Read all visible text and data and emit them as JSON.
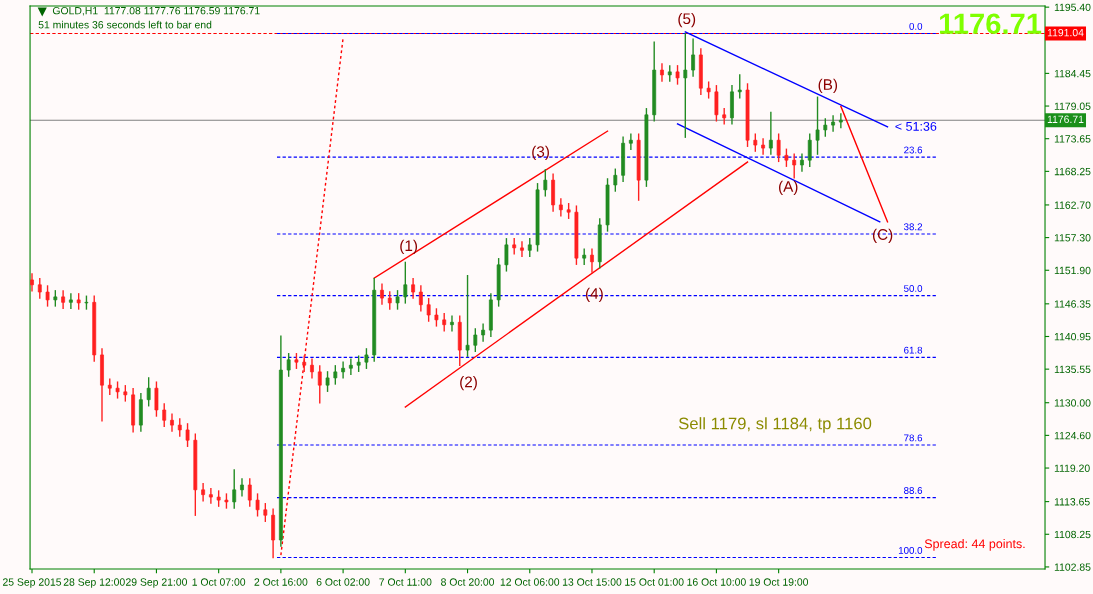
{
  "chart_data": {
    "type": "candlestick",
    "title": "GOLD,H1  1177.08 1177.76 1176.59 1176.71",
    "subtitle": "51 minutes 36 seconds left to bar end",
    "categories": [
      "25 Sep 2015",
      null,
      null,
      null,
      null,
      null,
      null,
      null,
      "28 Sep 12:00",
      null,
      null,
      null,
      null,
      null,
      null,
      null,
      "29 Sep 21:00",
      null,
      null,
      null,
      null,
      null,
      null,
      null,
      "1 Oct 07:00",
      null,
      null,
      null,
      null,
      null,
      null,
      null,
      "2 Oct 16:00",
      null,
      null,
      null,
      null,
      null,
      null,
      null,
      "6 Oct 02:00",
      null,
      null,
      null,
      null,
      null,
      null,
      null,
      "7 Oct 11:00",
      null,
      null,
      null,
      null,
      null,
      null,
      null,
      "8 Oct 20:00",
      null,
      null,
      null,
      null,
      null,
      null,
      null,
      "12 Oct 06:00",
      null,
      null,
      null,
      null,
      null,
      null,
      null,
      "13 Oct 15:00",
      null,
      null,
      null,
      null,
      null,
      null,
      null,
      "15 Oct 01:00",
      null,
      null,
      null,
      null,
      null,
      null,
      null,
      "16 Oct 10:00",
      null,
      null,
      null,
      null,
      null,
      null,
      null,
      "19 Oct 19:00",
      null,
      null,
      null,
      null,
      null,
      null,
      null,
      null,
      null,
      null,
      null,
      null,
      null,
      null,
      null,
      null,
      null,
      null,
      null,
      null,
      null,
      null,
      null,
      null,
      null,
      null,
      null,
      null,
      null,
      null,
      null,
      null,
      null,
      null
    ],
    "ohlc": [
      [
        1150.3,
        1151.3,
        1148.5,
        1149.5
      ],
      [
        1149.5,
        1150.5,
        1147.3,
        1148.3
      ],
      [
        1148.3,
        1149.3,
        1146.0,
        1147.0
      ],
      [
        1147.0,
        1148.5,
        1146.0,
        1147.5
      ],
      [
        1147.5,
        1148.5,
        1145.6,
        1146.6
      ],
      [
        1146.6,
        1148.0,
        1145.6,
        1147.0
      ],
      [
        1147.0,
        1148.0,
        1145.5,
        1146.5
      ],
      [
        1146.5,
        1147.6,
        1145.5,
        1146.6
      ],
      [
        1146.6,
        1147.6,
        1136.9,
        1137.9
      ],
      [
        1137.9,
        1138.9,
        1127.0,
        1132.9
      ],
      [
        1132.9,
        1133.9,
        1131.4,
        1132.4
      ],
      [
        1132.4,
        1133.4,
        1130.8,
        1131.8
      ],
      [
        1131.8,
        1132.8,
        1130.3,
        1131.3
      ],
      [
        1131.3,
        1132.3,
        1125.2,
        1126.3
      ],
      [
        1126.3,
        1131.5,
        1125.3,
        1130.5
      ],
      [
        1130.5,
        1134.1,
        1129.5,
        1132.4
      ],
      [
        1132.4,
        1133.4,
        1127.8,
        1128.8
      ],
      [
        1128.8,
        1129.8,
        1126.1,
        1127.1
      ],
      [
        1127.1,
        1128.1,
        1125.3,
        1126.3
      ],
      [
        1126.3,
        1127.3,
        1124.5,
        1125.5
      ],
      [
        1125.5,
        1126.5,
        1122.8,
        1123.8
      ],
      [
        1123.8,
        1124.8,
        1111.4,
        1115.6
      ],
      [
        1115.6,
        1116.6,
        1113.8,
        1114.8
      ],
      [
        1114.8,
        1115.8,
        1113.4,
        1114.4
      ],
      [
        1114.4,
        1115.4,
        1112.9,
        1113.9
      ],
      [
        1113.9,
        1114.9,
        1112.6,
        1113.6
      ],
      [
        1113.6,
        1118.9,
        1112.6,
        1115.6
      ],
      [
        1115.6,
        1117.4,
        1114.6,
        1116.4
      ],
      [
        1116.4,
        1117.4,
        1112.9,
        1113.9
      ],
      [
        1113.9,
        1114.9,
        1111.3,
        1112.3
      ],
      [
        1112.3,
        1113.3,
        1110.4,
        1111.4
      ],
      [
        1111.4,
        1112.4,
        1104.4,
        1107.3
      ],
      [
        1107.3,
        1141.0,
        1106.3,
        1135.4
      ],
      [
        1135.4,
        1138.1,
        1134.4,
        1137.1
      ],
      [
        1137.1,
        1138.1,
        1135.7,
        1136.7
      ],
      [
        1136.7,
        1137.7,
        1135.2,
        1136.2
      ],
      [
        1136.2,
        1137.2,
        1134.1,
        1135.1
      ],
      [
        1135.1,
        1136.1,
        1130.0,
        1132.9
      ],
      [
        1132.9,
        1135.1,
        1131.9,
        1134.1
      ],
      [
        1134.1,
        1136.1,
        1133.1,
        1135.1
      ],
      [
        1135.1,
        1136.7,
        1134.1,
        1135.7
      ],
      [
        1135.7,
        1137.2,
        1134.7,
        1136.2
      ],
      [
        1136.2,
        1137.7,
        1135.2,
        1136.7
      ],
      [
        1136.7,
        1138.9,
        1135.7,
        1137.9
      ],
      [
        1137.9,
        1150.5,
        1136.9,
        1148.6
      ],
      [
        1148.6,
        1149.6,
        1146.3,
        1147.3
      ],
      [
        1147.3,
        1148.3,
        1145.5,
        1146.5
      ],
      [
        1146.5,
        1148.5,
        1145.5,
        1147.5
      ],
      [
        1147.5,
        1153.2,
        1146.5,
        1149.5
      ],
      [
        1149.5,
        1150.5,
        1147.3,
        1148.3
      ],
      [
        1148.3,
        1149.3,
        1145.2,
        1146.2
      ],
      [
        1146.2,
        1147.2,
        1143.5,
        1144.5
      ],
      [
        1144.5,
        1145.5,
        1142.7,
        1143.7
      ],
      [
        1143.7,
        1144.7,
        1141.9,
        1142.9
      ],
      [
        1142.9,
        1144.3,
        1141.9,
        1143.3
      ],
      [
        1143.3,
        1144.3,
        1136.2,
        1138.7
      ],
      [
        1138.7,
        1151.0,
        1137.7,
        1139.5
      ],
      [
        1139.5,
        1142.2,
        1138.5,
        1141.2
      ],
      [
        1141.2,
        1143.0,
        1140.2,
        1142.0
      ],
      [
        1142.0,
        1148.0,
        1141.0,
        1147.0
      ],
      [
        1147.0,
        1153.8,
        1146.0,
        1152.8
      ],
      [
        1152.8,
        1157.1,
        1151.8,
        1156.1
      ],
      [
        1156.1,
        1157.1,
        1154.6,
        1155.6
      ],
      [
        1155.6,
        1156.6,
        1154.2,
        1155.2
      ],
      [
        1155.2,
        1157.1,
        1154.2,
        1156.1
      ],
      [
        1156.1,
        1166.2,
        1155.1,
        1165.2
      ],
      [
        1165.2,
        1168.5,
        1164.2,
        1166.8
      ],
      [
        1166.8,
        1167.8,
        1161.7,
        1162.7
      ],
      [
        1162.7,
        1163.7,
        1160.9,
        1161.9
      ],
      [
        1161.9,
        1162.9,
        1160.5,
        1161.5
      ],
      [
        1161.5,
        1162.5,
        1152.9,
        1153.9
      ],
      [
        1153.9,
        1155.4,
        1152.9,
        1154.4
      ],
      [
        1154.4,
        1155.4,
        1151.6,
        1153.3
      ],
      [
        1153.3,
        1160.4,
        1152.3,
        1159.4
      ],
      [
        1159.4,
        1167.0,
        1158.4,
        1166.0
      ],
      [
        1166.0,
        1168.6,
        1165.0,
        1167.6
      ],
      [
        1167.6,
        1173.9,
        1166.6,
        1172.9
      ],
      [
        1172.9,
        1174.4,
        1171.9,
        1173.4
      ],
      [
        1173.4,
        1174.4,
        1163.5,
        1166.8
      ],
      [
        1166.8,
        1178.6,
        1165.8,
        1177.6
      ],
      [
        1177.6,
        1189.6,
        1176.6,
        1185.0
      ],
      [
        1185.0,
        1186.0,
        1183.2,
        1184.2
      ],
      [
        1184.2,
        1185.7,
        1183.2,
        1184.7
      ],
      [
        1184.7,
        1185.7,
        1182.7,
        1183.7
      ],
      [
        1183.7,
        1191.0,
        1173.9,
        1185.0
      ],
      [
        1185.0,
        1190.1,
        1184.0,
        1187.5
      ],
      [
        1187.5,
        1188.5,
        1181.0,
        1182.0
      ],
      [
        1182.0,
        1183.0,
        1180.4,
        1181.4
      ],
      [
        1181.4,
        1182.4,
        1176.6,
        1177.6
      ],
      [
        1177.6,
        1178.6,
        1176.1,
        1177.1
      ],
      [
        1177.1,
        1182.4,
        1176.1,
        1181.4
      ],
      [
        1181.4,
        1184.2,
        1180.4,
        1181.7
      ],
      [
        1181.7,
        1182.7,
        1172.4,
        1173.4
      ],
      [
        1173.4,
        1174.4,
        1171.6,
        1172.6
      ],
      [
        1172.6,
        1173.6,
        1171.1,
        1172.1
      ],
      [
        1172.1,
        1178.0,
        1171.1,
        1173.4
      ],
      [
        1173.4,
        1174.4,
        1169.9,
        1170.9
      ],
      [
        1170.9,
        1171.9,
        1169.1,
        1170.1
      ],
      [
        1170.1,
        1171.1,
        1167.2,
        1169.3
      ],
      [
        1169.3,
        1171.1,
        1168.3,
        1170.1
      ],
      [
        1170.1,
        1174.4,
        1169.1,
        1173.4
      ],
      [
        1173.4,
        1180.5,
        1171.1,
        1175.1
      ],
      [
        1175.1,
        1176.9,
        1174.1,
        1175.9
      ],
      [
        1175.9,
        1177.4,
        1174.9,
        1176.4
      ],
      [
        1176.4,
        1177.76,
        1175.5,
        1176.71
      ],
      null,
      null,
      null,
      null,
      null,
      null,
      null,
      null,
      null,
      null,
      null,
      null,
      null,
      null,
      null,
      null,
      null,
      null,
      null,
      null,
      null,
      null,
      null,
      null,
      null,
      null
    ],
    "series": [
      {
        "type": "line",
        "color": "#ff0000",
        "line_style": "solid",
        "values": [
          null,
          null,
          null,
          null,
          null,
          null,
          null,
          null,
          null,
          null,
          null,
          null,
          null,
          null,
          null,
          null,
          null,
          null,
          null,
          null,
          null,
          null,
          null,
          null,
          null,
          null,
          null,
          null,
          null,
          null,
          null,
          null,
          null,
          null,
          null,
          null,
          null,
          null,
          null,
          null,
          null,
          null,
          null,
          null,
          1150.6,
          null,
          null,
          null,
          null,
          null,
          null,
          null,
          null,
          null,
          null,
          null,
          null,
          null,
          null,
          null,
          null,
          null,
          null,
          null,
          null,
          null,
          null,
          null,
          null,
          null,
          null,
          null,
          null,
          null,
          1174.9,
          null,
          null,
          null,
          null,
          null,
          null,
          null,
          null,
          null,
          null,
          null,
          null,
          null,
          null,
          null,
          null,
          null,
          null,
          null,
          null,
          null,
          null,
          null,
          null,
          null,
          null,
          null,
          null,
          null,
          null,
          null,
          null,
          null,
          null,
          null,
          null,
          null,
          null,
          null,
          null,
          null,
          null,
          null,
          null,
          null,
          null,
          null,
          null,
          null,
          null,
          null,
          null,
          null,
          null,
          null,
          null
        ]
      },
      {
        "type": "line",
        "color": "#ff0000",
        "line_style": "solid",
        "values": [
          null,
          null,
          null,
          null,
          null,
          null,
          null,
          null,
          null,
          null,
          null,
          null,
          null,
          null,
          null,
          null,
          null,
          null,
          null,
          null,
          null,
          null,
          null,
          null,
          null,
          null,
          null,
          null,
          null,
          null,
          null,
          null,
          null,
          null,
          null,
          null,
          null,
          null,
          null,
          null,
          null,
          null,
          null,
          null,
          null,
          null,
          null,
          null,
          1129.3,
          null,
          null,
          null,
          null,
          null,
          null,
          null,
          null,
          null,
          null,
          null,
          null,
          null,
          null,
          null,
          null,
          null,
          null,
          null,
          null,
          null,
          null,
          null,
          null,
          null,
          null,
          null,
          null,
          null,
          null,
          null,
          null,
          null,
          null,
          null,
          null,
          null,
          null,
          null,
          null,
          null,
          null,
          null,
          1169.8,
          null,
          null,
          null,
          null,
          null,
          null,
          null,
          null,
          null,
          null,
          null,
          null,
          null,
          null,
          null,
          null,
          null,
          null,
          null,
          null,
          null,
          null,
          null,
          null,
          null,
          null,
          null,
          null,
          null,
          null,
          null,
          null,
          null,
          null,
          null,
          null,
          null,
          null
        ]
      },
      {
        "type": "line",
        "color": "#0000ff",
        "line_style": "solid",
        "values": [
          null,
          null,
          null,
          null,
          null,
          null,
          null,
          null,
          null,
          null,
          null,
          null,
          null,
          null,
          null,
          null,
          null,
          null,
          null,
          null,
          null,
          null,
          null,
          null,
          null,
          null,
          null,
          null,
          null,
          null,
          null,
          null,
          null,
          null,
          null,
          null,
          null,
          null,
          null,
          null,
          null,
          null,
          null,
          null,
          null,
          null,
          null,
          null,
          null,
          null,
          null,
          null,
          null,
          null,
          null,
          null,
          null,
          null,
          null,
          null,
          null,
          null,
          null,
          null,
          null,
          null,
          null,
          null,
          null,
          null,
          null,
          null,
          null,
          null,
          null,
          null,
          null,
          null,
          null,
          null,
          null,
          null,
          null,
          null,
          1191.3,
          null,
          null,
          null,
          null,
          null,
          null,
          null,
          null,
          null,
          null,
          null,
          null,
          null,
          null,
          null,
          null,
          null,
          null,
          null,
          null,
          null,
          null,
          null,
          null,
          null,
          1175.6,
          null,
          null,
          null,
          null,
          null,
          null,
          null,
          null,
          null,
          null,
          null,
          null,
          null,
          null,
          null,
          null,
          null,
          null,
          null,
          null
        ]
      },
      {
        "type": "line",
        "color": "#0000ff",
        "line_style": "solid",
        "values": [
          null,
          null,
          null,
          null,
          null,
          null,
          null,
          null,
          null,
          null,
          null,
          null,
          null,
          null,
          null,
          null,
          null,
          null,
          null,
          null,
          null,
          null,
          null,
          null,
          null,
          null,
          null,
          null,
          null,
          null,
          null,
          null,
          null,
          null,
          null,
          null,
          null,
          null,
          null,
          null,
          null,
          null,
          null,
          null,
          null,
          null,
          null,
          null,
          null,
          null,
          null,
          null,
          null,
          null,
          null,
          null,
          null,
          null,
          null,
          null,
          null,
          null,
          null,
          null,
          null,
          null,
          null,
          null,
          null,
          null,
          null,
          null,
          null,
          null,
          null,
          null,
          null,
          null,
          null,
          null,
          null,
          null,
          null,
          1176.1,
          null,
          null,
          null,
          null,
          null,
          null,
          null,
          null,
          null,
          null,
          null,
          null,
          null,
          null,
          null,
          null,
          null,
          null,
          null,
          null,
          null,
          null,
          null,
          null,
          null,
          1159.9,
          null,
          null,
          null,
          null,
          null,
          null,
          null,
          null,
          null,
          null,
          null,
          null,
          null,
          null,
          null,
          null,
          null,
          null,
          null,
          null,
          null
        ]
      },
      {
        "type": "line",
        "color": "#ff0000",
        "line_style": "dotted",
        "values": [
          null,
          null,
          null,
          null,
          null,
          null,
          null,
          null,
          null,
          null,
          null,
          null,
          null,
          null,
          null,
          null,
          null,
          null,
          null,
          null,
          null,
          null,
          null,
          null,
          null,
          null,
          null,
          null,
          null,
          null,
          null,
          null,
          1104.8,
          null,
          null,
          null,
          null,
          null,
          null,
          null,
          1190.3,
          null,
          null,
          null,
          null,
          null,
          null,
          null,
          null,
          null,
          null,
          null,
          null,
          null,
          null,
          null,
          null,
          null,
          null,
          null,
          null,
          null,
          null,
          null,
          null,
          null,
          null,
          null,
          null,
          null,
          null,
          null,
          null,
          null,
          null,
          null,
          null,
          null,
          null,
          null,
          null,
          null,
          null,
          null,
          null,
          null,
          null,
          null,
          null,
          null,
          null,
          null,
          null,
          null,
          null,
          null,
          null,
          null,
          null,
          null,
          null,
          null,
          null,
          null,
          null,
          null,
          null,
          null,
          null,
          null,
          null,
          null,
          null,
          null,
          null,
          null,
          null,
          null,
          null,
          null,
          null,
          null,
          null,
          null,
          null,
          null,
          null,
          null,
          null,
          null,
          null
        ]
      },
      {
        "type": "line",
        "color": "#ff0000",
        "line_style": "solid",
        "values": [
          null,
          null,
          null,
          null,
          null,
          null,
          null,
          null,
          null,
          null,
          null,
          null,
          null,
          null,
          null,
          null,
          null,
          null,
          null,
          null,
          null,
          null,
          null,
          null,
          null,
          null,
          null,
          null,
          null,
          null,
          null,
          null,
          null,
          null,
          null,
          null,
          null,
          null,
          null,
          null,
          null,
          null,
          null,
          null,
          null,
          null,
          null,
          null,
          null,
          null,
          null,
          null,
          null,
          null,
          null,
          null,
          null,
          null,
          null,
          null,
          null,
          null,
          null,
          null,
          null,
          null,
          null,
          null,
          null,
          null,
          null,
          null,
          null,
          null,
          null,
          null,
          null,
          null,
          null,
          null,
          null,
          null,
          null,
          null,
          null,
          null,
          null,
          null,
          null,
          null,
          null,
          null,
          null,
          null,
          null,
          null,
          null,
          null,
          null,
          null,
          null,
          null,
          null,
          null,
          1179.0,
          null,
          null,
          null,
          null,
          null,
          1159.9,
          null,
          null,
          null,
          null,
          null,
          null,
          null,
          null,
          null,
          null,
          null,
          null,
          null,
          null,
          null,
          null,
          null,
          null,
          null,
          null
        ]
      }
    ],
    "ref_lines": [
      {
        "axis": "y",
        "value": 1191.04,
        "label": "1191.04",
        "color": "#ff0000",
        "line_style": "dashed"
      },
      {
        "axis": "y",
        "value": 1176.71,
        "label": "1176.71",
        "color": "#808080",
        "line_style": "solid"
      },
      {
        "axis": "y",
        "value": 1191.04,
        "color": "#0000ff",
        "line_style": "dashed"
      },
      {
        "axis": "y",
        "value": 1170.6,
        "color": "#0000ff",
        "line_style": "dashed"
      },
      {
        "axis": "y",
        "value": 1157.9,
        "color": "#0000ff",
        "line_style": "dashed"
      },
      {
        "axis": "y",
        "value": 1147.7,
        "color": "#0000ff",
        "line_style": "dashed"
      },
      {
        "axis": "y",
        "value": 1137.5,
        "color": "#0000ff",
        "line_style": "dashed"
      },
      {
        "axis": "y",
        "value": 1123.0,
        "color": "#0000ff",
        "line_style": "dashed"
      },
      {
        "axis": "y",
        "value": 1114.3,
        "color": "#0000ff",
        "line_style": "dashed"
      },
      {
        "axis": "y",
        "value": 1104.4,
        "color": "#0000ff",
        "line_style": "dashed"
      }
    ],
    "annotations": [
      "(1)",
      "(2)",
      "(3)",
      "(4)",
      "(5)",
      "(A)",
      "(B)",
      {
        "text": "(C)",
        "y": 1159.9
      },
      {
        "text": "< 51:36",
        "y": 1176.71
      },
      "1176.71",
      "Sell 1179, sl 1184, tp 1160",
      "Spread: 44 points.",
      {
        "text": "0.0",
        "y": 1191.04
      },
      {
        "text": "23.6",
        "y": 1170.6
      },
      {
        "text": "38.2",
        "y": 1157.9
      },
      {
        "text": "50.0",
        "y": 1147.7
      },
      {
        "text": "61.8",
        "y": 1137.5
      },
      {
        "text": "78.6",
        "y": 1123.0
      },
      {
        "text": "88.6",
        "y": 1114.3
      },
      {
        "text": "100.0",
        "y": 1104.4
      }
    ],
    "ylim": [
      1102.5,
      1195.6
    ],
    "yticks": [
      {
        "value": 1195.4,
        "label": "1195.40"
      },
      {
        "value": 1184.45,
        "label": "1184.45"
      },
      {
        "value": 1179.05,
        "label": "1179.05"
      },
      {
        "value": 1173.65,
        "label": "1173.65"
      },
      {
        "value": 1168.25,
        "label": "1168.25"
      },
      {
        "value": 1162.7,
        "label": "1162.70"
      },
      {
        "value": 1157.3,
        "label": "1157.30"
      },
      {
        "value": 1151.9,
        "label": "1151.90"
      },
      {
        "value": 1146.35,
        "label": "1146.35"
      },
      {
        "value": 1140.95,
        "label": "1140.95"
      },
      {
        "value": 1135.55,
        "label": "1135.55"
      },
      {
        "value": 1130.0,
        "label": "1130.00"
      },
      {
        "value": 1124.6,
        "label": "1124.60"
      },
      {
        "value": 1119.2,
        "label": "1119.20"
      },
      {
        "value": 1113.65,
        "label": "1113.65"
      },
      {
        "value": 1108.25,
        "label": "1108.25"
      },
      {
        "value": 1102.85,
        "label": "1102.85"
      }
    ],
    "grid": false
  }
}
